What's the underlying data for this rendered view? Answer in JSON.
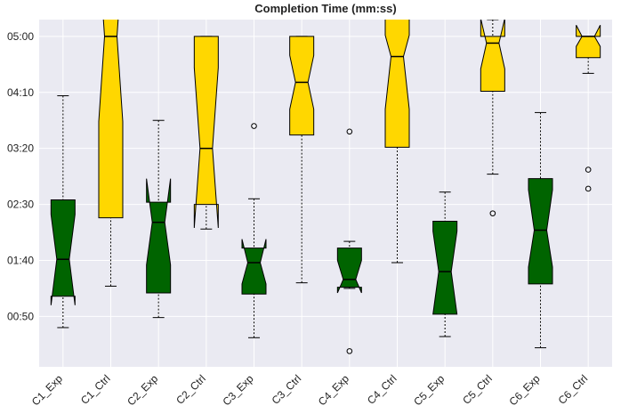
{
  "chart_data": {
    "type": "box",
    "title": "Completion Time (mm:ss)",
    "categories": [
      "C1_Exp",
      "C1_Ctrl",
      "C2_Exp",
      "C2_Ctrl",
      "C3_Exp",
      "C3_Ctrl",
      "C4_Exp",
      "C4_Ctrl",
      "C5_Exp",
      "C5_Ctrl",
      "C6_Exp",
      "C6_Ctrl"
    ],
    "boxes": [
      {
        "color": "#006400",
        "whislo": 40,
        "q1": 68,
        "notch_lo": 60,
        "median": 101,
        "notch_hi": 141,
        "q3": 154,
        "whishi": 247,
        "fliers": []
      },
      {
        "color": "#ffd700",
        "whislo": 77,
        "q1": 138,
        "notch_lo": 224,
        "median": 300,
        "notch_hi": 376,
        "q3": 330,
        "whishi": 340,
        "fliers": []
      },
      {
        "color": "#006400",
        "whislo": 49,
        "q1": 71,
        "notch_lo": 96,
        "median": 134,
        "notch_hi": 173,
        "q3": 152,
        "whishi": 225,
        "fliers": []
      },
      {
        "color": "#ffd700",
        "whislo": 128,
        "q1": 150,
        "notch_lo": 129,
        "median": 200,
        "notch_hi": 272,
        "q3": 300,
        "whishi": 300,
        "fliers": []
      },
      {
        "color": "#006400",
        "whislo": 31,
        "q1": 70,
        "notch_lo": 79,
        "median": 98,
        "notch_hi": 119,
        "q3": 111,
        "whishi": 155,
        "fliers": [
          220
        ]
      },
      {
        "color": "#ffd700",
        "whislo": 80,
        "q1": 212,
        "notch_lo": 235,
        "median": 259,
        "notch_hi": 283,
        "q3": 300,
        "whishi": 300,
        "fliers": []
      },
      {
        "color": "#006400",
        "whislo": 75,
        "q1": 76,
        "notch_lo": 71,
        "median": 83,
        "notch_hi": 100,
        "q3": 111,
        "whishi": 117,
        "fliers": [
          215,
          19
        ]
      },
      {
        "color": "#ffd700",
        "whislo": 98,
        "q1": 201,
        "notch_lo": 235,
        "median": 282,
        "notch_hi": 301,
        "q3": 325,
        "whishi": 330,
        "fliers": []
      },
      {
        "color": "#006400",
        "whislo": 32,
        "q1": 52,
        "notch_lo": 52,
        "median": 90,
        "notch_hi": 126,
        "q3": 135,
        "whishi": 161,
        "fliers": []
      },
      {
        "color": "#ffd700",
        "whislo": 177,
        "q1": 251,
        "notch_lo": 271,
        "median": 294,
        "notch_hi": 316,
        "q3": 300,
        "whishi": 315,
        "fliers": [
          142
        ]
      },
      {
        "color": "#006400",
        "whislo": 22,
        "q1": 79,
        "notch_lo": 94,
        "median": 127,
        "notch_hi": 163,
        "q3": 173,
        "whishi": 232,
        "fliers": []
      },
      {
        "color": "#ffd700",
        "whislo": 267,
        "q1": 281,
        "notch_lo": 291,
        "median": 300,
        "notch_hi": 310,
        "q3": 300,
        "whishi": 300,
        "fliers": [
          181,
          164
        ]
      }
    ],
    "ylim": [
      5,
      315
    ],
    "yticks": [
      {
        "value": 50,
        "label": "00:50"
      },
      {
        "value": 100,
        "label": "01:40"
      },
      {
        "value": 150,
        "label": "02:30"
      },
      {
        "value": 200,
        "label": "03:20"
      },
      {
        "value": 250,
        "label": "04:10"
      },
      {
        "value": 300,
        "label": "05:00"
      }
    ],
    "grid": true
  }
}
